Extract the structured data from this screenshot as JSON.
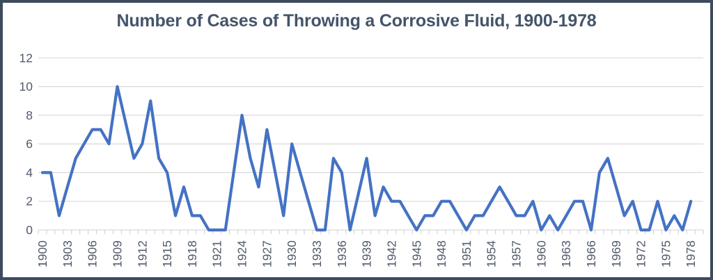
{
  "chart_data": {
    "type": "line",
    "title": "Number of Cases of Throwing a Corrosive Fluid, 1900-1978",
    "xlabel": "",
    "ylabel": "",
    "legend": "none",
    "grid": true,
    "ylim": [
      0,
      12
    ],
    "ytick_step": 2,
    "ytick_labels": [
      0,
      2,
      4,
      6,
      8,
      10,
      12
    ],
    "xtick_label_step": 3,
    "xtick_labels": [
      1900,
      1903,
      1906,
      1909,
      1912,
      1915,
      1918,
      1921,
      1924,
      1927,
      1930,
      1933,
      1936,
      1939,
      1942,
      1945,
      1948,
      1951,
      1954,
      1957,
      1960,
      1963,
      1966,
      1969,
      1972,
      1975,
      1978
    ],
    "missing_years_line_interpolated": [
      1910,
      1938
    ],
    "x": [
      1900,
      1901,
      1902,
      1903,
      1904,
      1905,
      1906,
      1907,
      1908,
      1909,
      1910,
      1911,
      1912,
      1913,
      1914,
      1915,
      1916,
      1917,
      1918,
      1919,
      1920,
      1921,
      1922,
      1923,
      1924,
      1925,
      1926,
      1927,
      1928,
      1929,
      1930,
      1931,
      1932,
      1933,
      1934,
      1935,
      1936,
      1937,
      1938,
      1939,
      1940,
      1941,
      1942,
      1943,
      1944,
      1945,
      1946,
      1947,
      1948,
      1949,
      1950,
      1951,
      1952,
      1953,
      1954,
      1955,
      1956,
      1957,
      1958,
      1959,
      1960,
      1961,
      1962,
      1963,
      1964,
      1965,
      1966,
      1967,
      1968,
      1969,
      1970,
      1971,
      1972,
      1973,
      1974,
      1975,
      1976,
      1977,
      1978
    ],
    "values": [
      4,
      4,
      1,
      3,
      5,
      6,
      7,
      7,
      6,
      10,
      null,
      5,
      6,
      9,
      5,
      4,
      1,
      3,
      1,
      1,
      0,
      0,
      0,
      4,
      8,
      5,
      3,
      7,
      4,
      1,
      6,
      4,
      2,
      0,
      0,
      5,
      4,
      0,
      null,
      5,
      1,
      3,
      2,
      2,
      1,
      0,
      1,
      1,
      2,
      2,
      1,
      0,
      1,
      1,
      2,
      3,
      2,
      1,
      1,
      2,
      0,
      1,
      0,
      1,
      2,
      2,
      0,
      4,
      5,
      3,
      1,
      2,
      0,
      0,
      2,
      0,
      1,
      0,
      2
    ],
    "colors": {
      "line": "#4472C4",
      "title": "#44546A",
      "axis_labels": "#515A6A",
      "gridlines": "#D9D9D9",
      "tick_marks": "#C9CCD2",
      "frame_border": "#3E4A5D",
      "background": "#FFFFFF"
    }
  }
}
